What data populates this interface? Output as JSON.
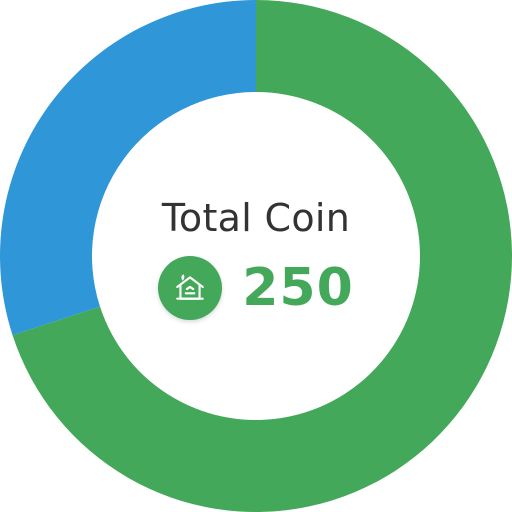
{
  "center": {
    "title": "Total Coin",
    "value": "250",
    "icon": "house-icon"
  },
  "colors": {
    "green": "#44a85a",
    "blue": "#2f96d8",
    "title_text": "#333333",
    "value_text": "#44a85a",
    "badge": "#44a85a"
  },
  "chart_data": {
    "type": "pie",
    "style": "donut",
    "slices": [
      {
        "value": 70,
        "color": "#44a85a"
      },
      {
        "value": 30,
        "color": "#2f96d8"
      }
    ]
  }
}
